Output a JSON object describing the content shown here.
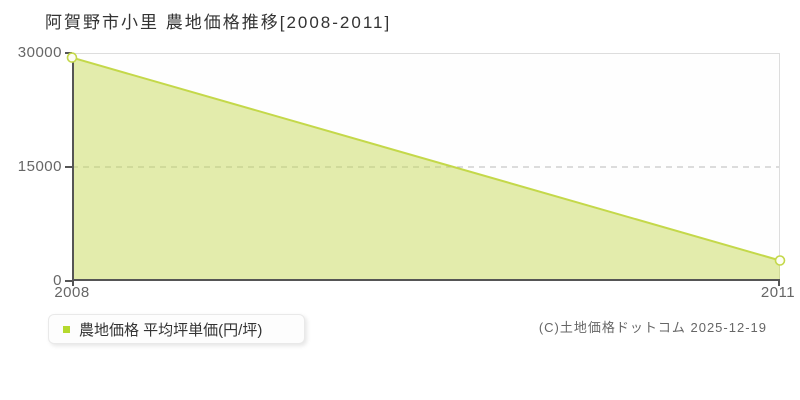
{
  "title": "阿賀野市小里 農地価格推移[2008-2011]",
  "chart_data": {
    "type": "area",
    "title": "阿賀野市小里 農地価格推移[2008-2011]",
    "x": [
      2008,
      2011
    ],
    "x_labels": [
      "2008",
      "2011"
    ],
    "series": [
      {
        "name": "農地価格 平均坪単価(円/坪)",
        "values": [
          29400,
          2700
        ]
      }
    ],
    "ylim": [
      0,
      30000
    ],
    "yticks": [
      {
        "value": 30000,
        "label": "30000"
      },
      {
        "value": 15000,
        "label": "15000"
      },
      {
        "value": 0,
        "label": "0"
      }
    ],
    "grid": "horizontal: solid light line at 30000 (top), dashed line at 15000, dark axis at 0",
    "legend_position": "bottom-left",
    "colors": {
      "line": "#c4d84a",
      "fill": "rgba(196,216,74,0.45)",
      "marker_fill": "#fdfdf5",
      "legend_marker": "#b5d92e",
      "grid_light": "#dddddd",
      "grid_dashed": "#bbbbbb",
      "axis": "#555555"
    }
  },
  "legend": {
    "label": "農地価格 平均坪単価(円/坪)"
  },
  "footer": {
    "copyright": "(C)土地価格ドットコム 2025-12-19"
  }
}
